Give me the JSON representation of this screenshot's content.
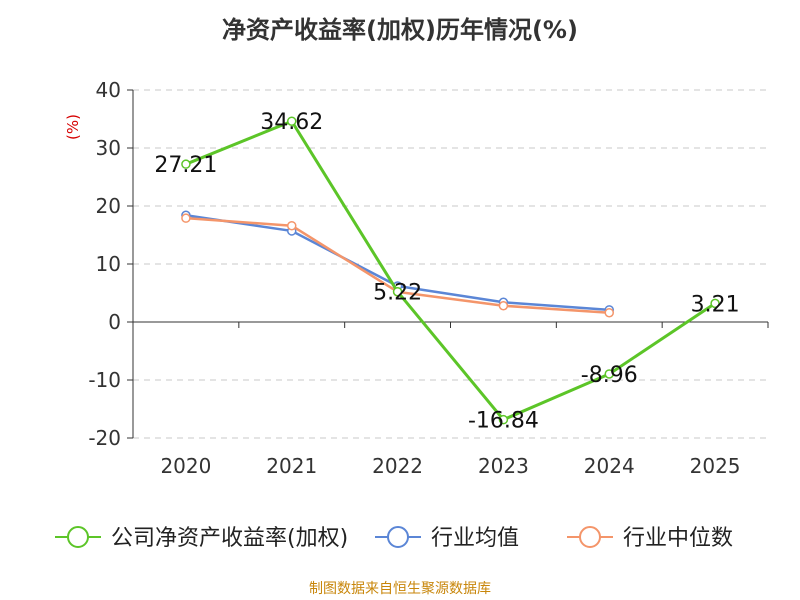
{
  "chart_data": {
    "type": "line",
    "title": "净资产收益率(加权)历年情况(%)",
    "ylabel": "(%)",
    "xlabel": "",
    "categories": [
      "2020",
      "2021",
      "2022",
      "2023",
      "2024",
      "2025"
    ],
    "ylim": [
      -20,
      40
    ],
    "yticks": [
      -20,
      -10,
      0,
      10,
      20,
      30,
      40
    ],
    "grid": true,
    "legend_position": "bottom",
    "series": [
      {
        "name": "公司净资产收益率(加权)",
        "color": "#5cc528",
        "values": [
          27.21,
          34.62,
          5.22,
          -16.84,
          -8.96,
          3.21
        ],
        "labels": [
          "27.21",
          "34.62",
          "5.22",
          "-16.84",
          "-8.96",
          "3.21"
        ]
      },
      {
        "name": "行业均值",
        "color": "#5b86d6",
        "values": [
          18.4,
          15.7,
          6.2,
          3.4,
          2.1,
          null
        ]
      },
      {
        "name": "行业中位数",
        "color": "#f4956a",
        "values": [
          17.9,
          16.6,
          5.2,
          2.8,
          1.6,
          null
        ]
      }
    ]
  },
  "footer": "制图数据来自恒生聚源数据库"
}
